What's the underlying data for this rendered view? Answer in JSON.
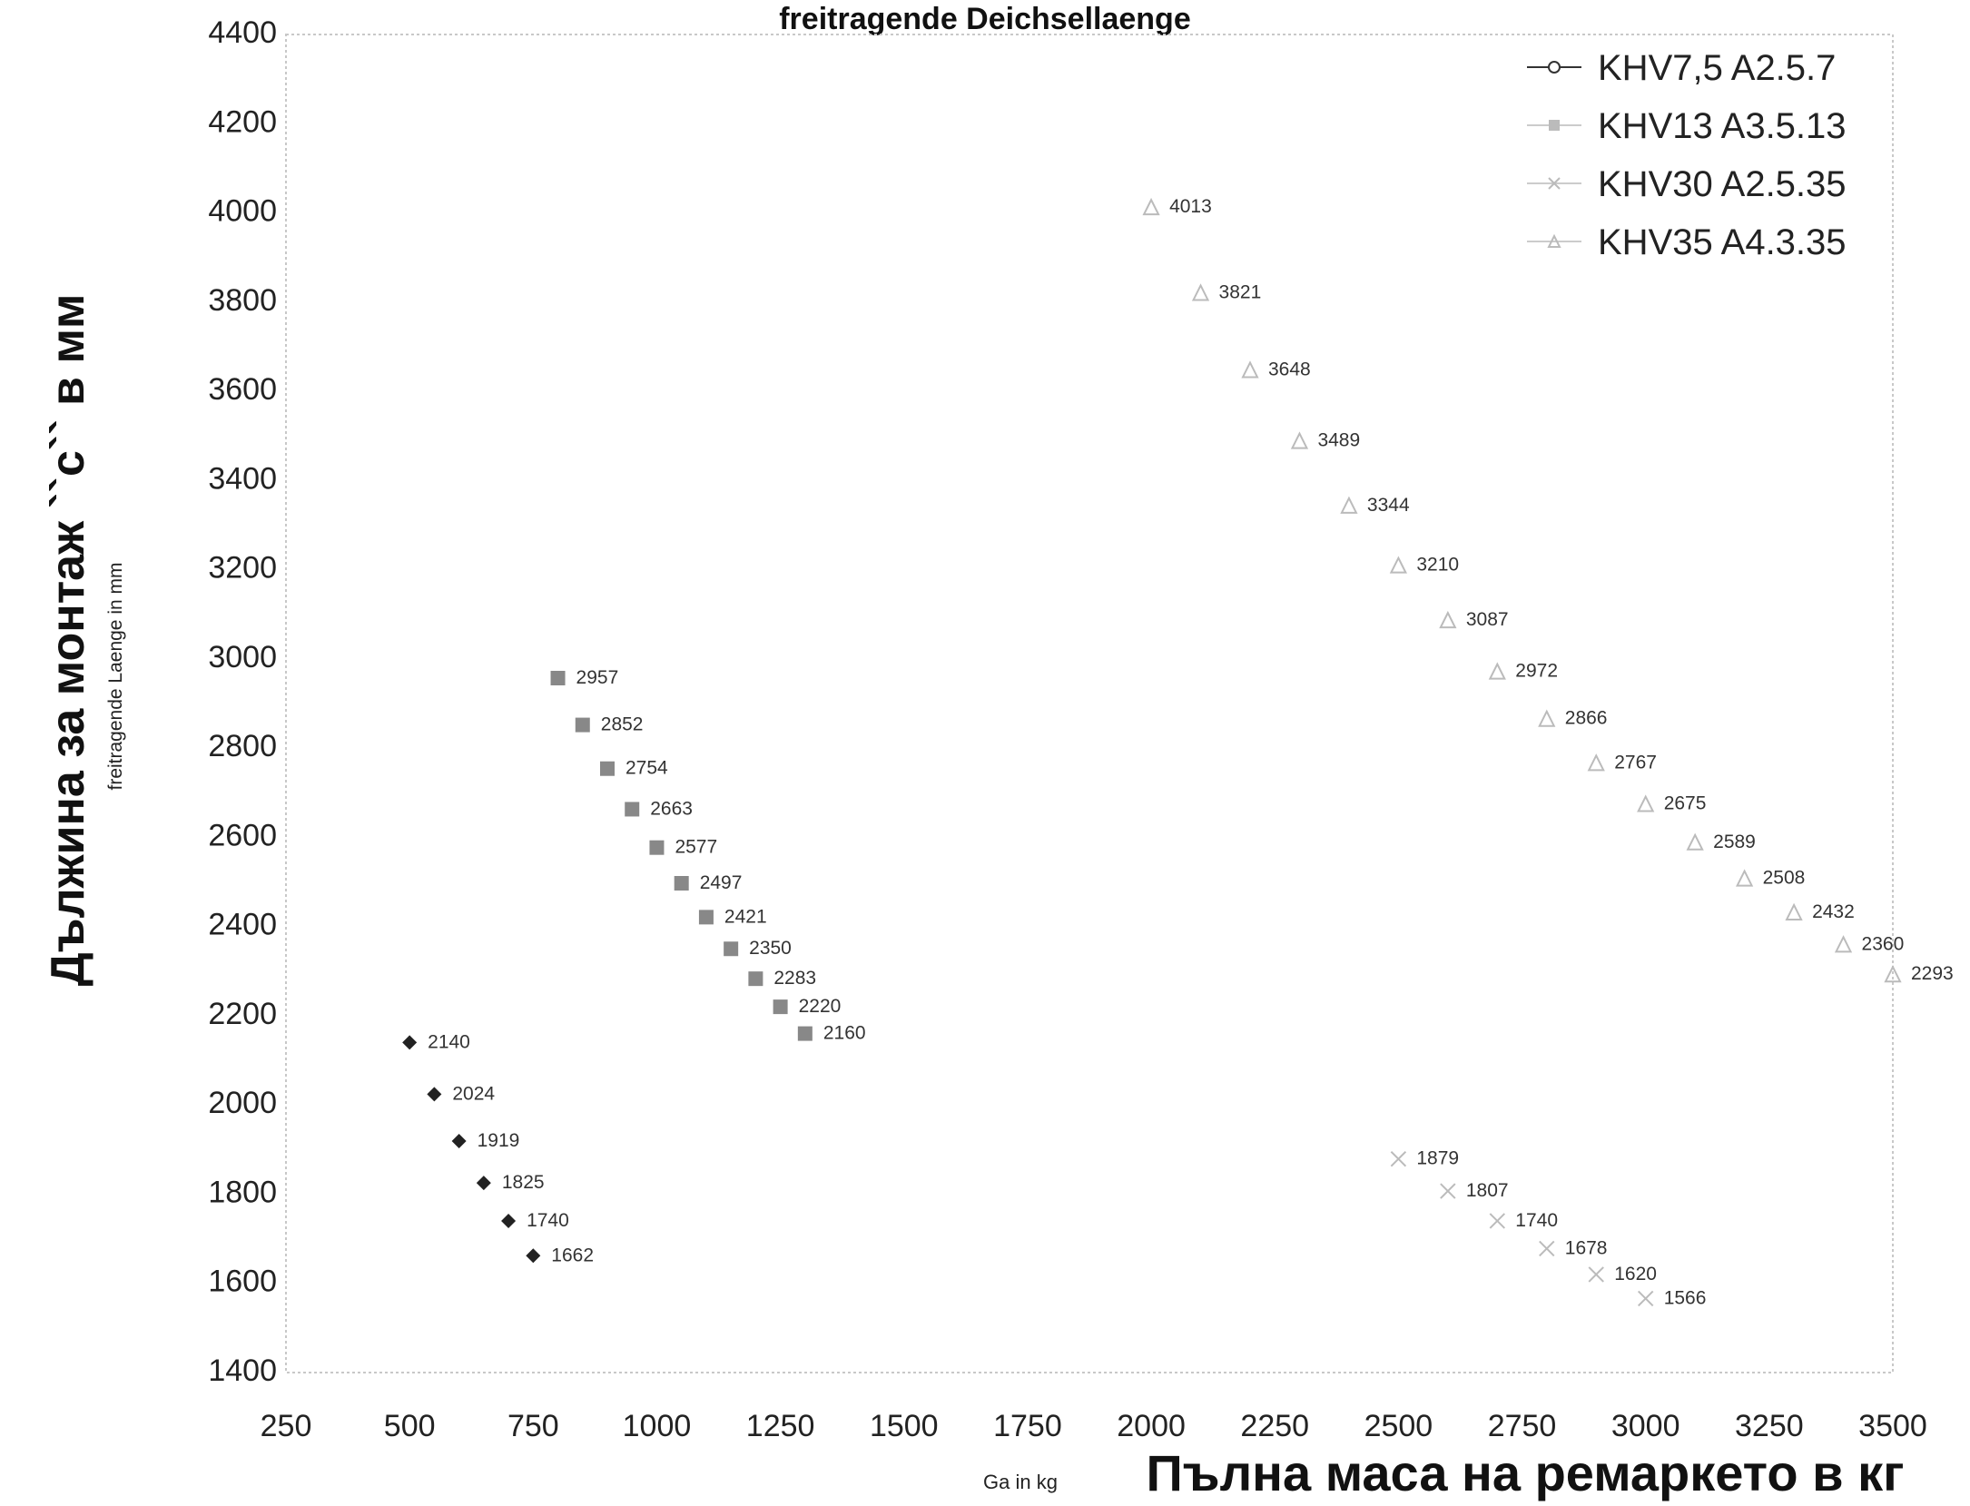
{
  "title": "freitragende Deichsellaenge ",
  "chart_data": {
    "type": "scatter",
    "xlabel_main": "Пълна маса на ремаркето в кг",
    "xlabel_sub": "Ga in kg",
    "ylabel_main": "Дължина за монтаж ``с`` в мм",
    "ylabel_sub": "freitragende Laenge in mm",
    "xlim": [
      250,
      3500
    ],
    "ylim": [
      1400,
      4400
    ],
    "xticks": [
      250,
      500,
      750,
      1000,
      1250,
      1500,
      1750,
      2000,
      2250,
      2500,
      2750,
      3000,
      3250,
      3500
    ],
    "yticks": [
      1400,
      1600,
      1800,
      2000,
      2200,
      2400,
      2600,
      2800,
      3000,
      3200,
      3400,
      3600,
      3800,
      4000,
      4200,
      4400
    ],
    "grid": false,
    "legend_position": "top-right",
    "series": [
      {
        "name": "KHV7,5 A2.5.7",
        "marker": "diamond",
        "color": "#222222",
        "x": [
          500,
          550,
          600,
          650,
          700,
          750
        ],
        "y": [
          2140,
          2024,
          1919,
          1825,
          1740,
          1662
        ]
      },
      {
        "name": "KHV13 A3.5.13",
        "marker": "square",
        "color": "#888888",
        "x": [
          800,
          850,
          900,
          950,
          1000,
          1050,
          1100,
          1150,
          1200,
          1250,
          1300
        ],
        "y": [
          2957,
          2852,
          2754,
          2663,
          2577,
          2497,
          2421,
          2350,
          2283,
          2220,
          2160
        ]
      },
      {
        "name": "KHV30 A2.5.35",
        "marker": "x",
        "color": "#bbbbbb",
        "x": [
          2500,
          2600,
          2700,
          2800,
          2900,
          3000
        ],
        "y": [
          1879,
          1807,
          1740,
          1678,
          1620,
          1566
        ]
      },
      {
        "name": "KHV35 A4.3.35",
        "marker": "triangle",
        "color": "#bbbbbb",
        "x": [
          2000,
          2100,
          2200,
          2300,
          2400,
          2500,
          2600,
          2700,
          2800,
          2900,
          3000,
          3100,
          3200,
          3300,
          3400,
          3500
        ],
        "y": [
          4013,
          3821,
          3648,
          3489,
          3344,
          3210,
          3087,
          2972,
          2866,
          2767,
          2675,
          2589,
          2508,
          2432,
          2360,
          2293
        ]
      }
    ]
  }
}
